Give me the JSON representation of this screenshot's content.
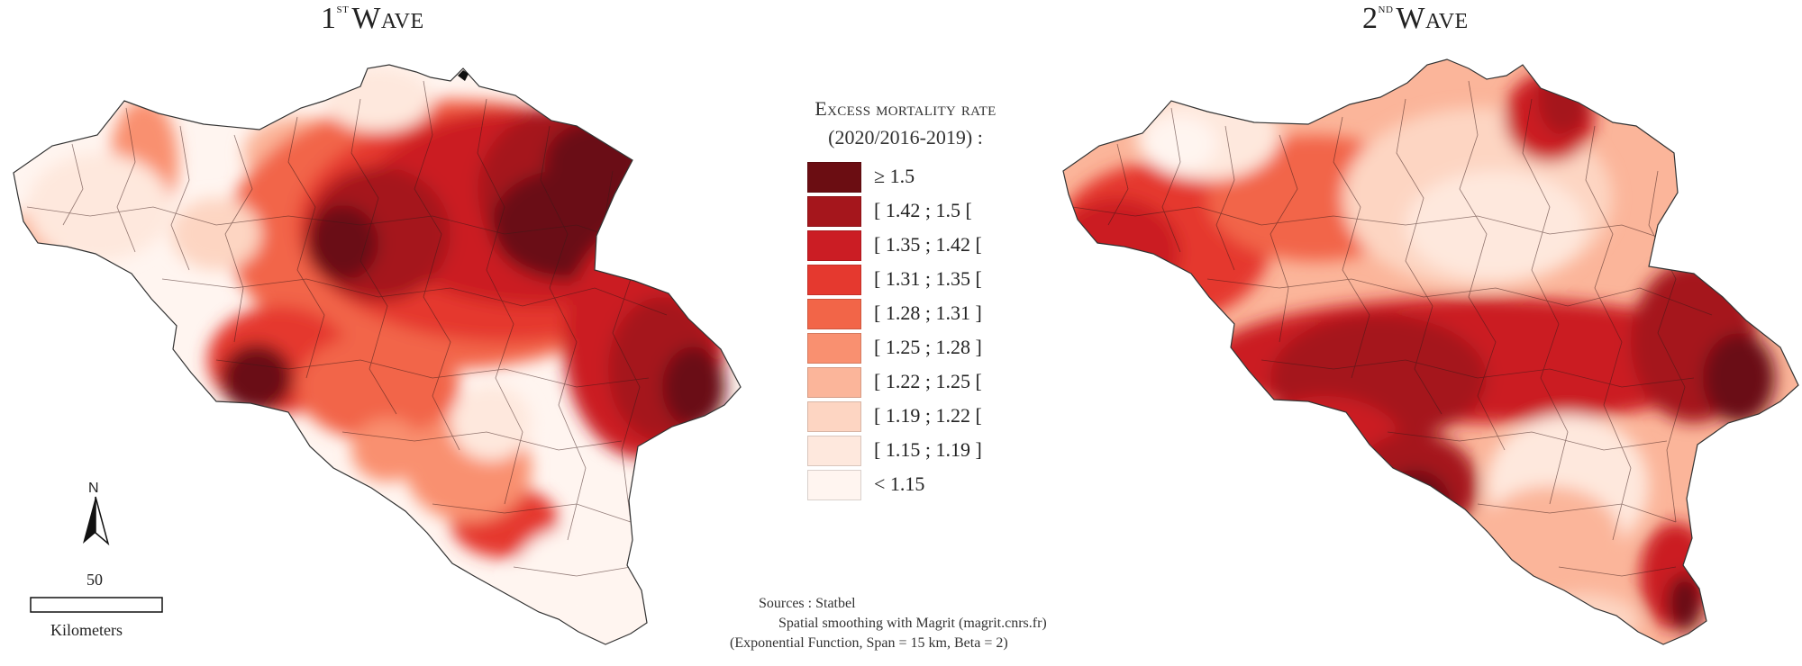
{
  "titles": {
    "wave1_ordinal": "1",
    "wave1_suffix": "st",
    "wave1_word": "Wave",
    "wave2_ordinal": "2",
    "wave2_suffix": "nd",
    "wave2_word": "Wave"
  },
  "legend": {
    "title_line1": "Excess mortality rate",
    "title_line2": "(2020/2016-2019) :",
    "classes": [
      {
        "label": "≥ 1.5",
        "color": "#6b0d12"
      },
      {
        "label": "[ 1.42 ; 1.5 [",
        "color": "#a5161c"
      },
      {
        "label": "[ 1.35 ; 1.42 [",
        "color": "#cb1d24"
      },
      {
        "label": "[ 1.31 ; 1.35 [",
        "color": "#e5392f"
      },
      {
        "label": "[ 1.28 ; 1.31 ]",
        "color": "#f26548"
      },
      {
        "label": "[ 1.25 ; 1.28 ]",
        "color": "#f99070"
      },
      {
        "label": "[ 1.22 ; 1.25 [",
        "color": "#fbb59a"
      },
      {
        "label": "[ 1.19 ; 1.22 [",
        "color": "#fdd5c2"
      },
      {
        "label": "[ 1.15 ; 1.19 ]",
        "color": "#fee8dd"
      },
      {
        "label": "< 1.15",
        "color": "#fff5f0"
      }
    ]
  },
  "sources": {
    "line1": "Sources : Statbel",
    "line2": "Spatial smoothing with Magrit (magrit.cnrs.fr)",
    "line3": "(Exponential Function, Span = 15 km, Beta = 2)"
  },
  "scale_bar": {
    "value": "50",
    "unit": "Kilometers"
  },
  "north_arrow": {
    "label": "N",
    "icon": "north-arrow-icon"
  }
}
